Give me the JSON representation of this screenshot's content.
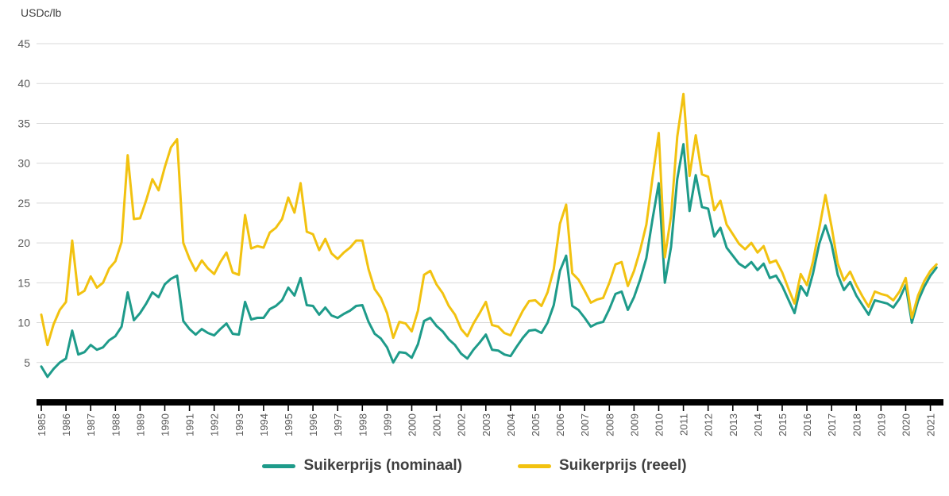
{
  "header": {
    "unit_label": "USDc/lb"
  },
  "legend": {
    "items": [
      {
        "label": "Suikerprijs (nominaal)",
        "color": "#1e9b8a"
      },
      {
        "label": "Suikerprijs (reeel)",
        "color": "#f2c210"
      }
    ]
  },
  "colors": {
    "grid": "#d9d9d9",
    "axis_baseline": "#000000",
    "tick_label": "#595959",
    "unit_label": "#404040",
    "series_nominal": "#1e9b8a",
    "series_real": "#f2c210"
  },
  "chart_data": {
    "type": "line",
    "title": "",
    "xlabel": "",
    "ylabel": "USDc/lb",
    "grid": "horizontal",
    "legend_position": "bottom-center",
    "ylim": [
      0,
      45
    ],
    "yticks": [
      5,
      10,
      15,
      20,
      25,
      30,
      35,
      40,
      45
    ],
    "xlim": [
      1985,
      2021.4
    ],
    "xticks": [
      "1985",
      "1986",
      "1987",
      "1988",
      "1989",
      "1990",
      "1991",
      "1992",
      "1993",
      "1994",
      "1995",
      "1996",
      "1997",
      "1998",
      "1999",
      "2000",
      "2001",
      "2002",
      "2003",
      "2004",
      "2005",
      "2006",
      "2007",
      "2008",
      "2009",
      "2010",
      "2011",
      "2012",
      "2013",
      "2014",
      "2015",
      "2016",
      "2017",
      "2018",
      "2019",
      "2020",
      "2021"
    ],
    "x_start": 1985,
    "x_step": 0.25,
    "series": [
      {
        "name": "Suikerprijs (nominaal)",
        "color": "#1e9b8a",
        "values": [
          4.5,
          3.2,
          4.2,
          5.0,
          5.5,
          9.0,
          6.0,
          6.3,
          7.2,
          6.6,
          6.9,
          7.8,
          8.3,
          9.5,
          13.8,
          10.3,
          11.2,
          12.4,
          13.8,
          13.2,
          14.8,
          15.5,
          15.9,
          10.2,
          9.2,
          8.5,
          9.2,
          8.7,
          8.4,
          9.2,
          9.9,
          8.6,
          8.5,
          12.6,
          10.4,
          10.6,
          10.6,
          11.7,
          12.1,
          12.8,
          14.4,
          13.4,
          15.6,
          12.2,
          12.1,
          11.0,
          11.9,
          10.9,
          10.6,
          11.1,
          11.5,
          12.1,
          12.2,
          10.1,
          8.6,
          8.0,
          6.9,
          5.0,
          6.3,
          6.2,
          5.6,
          7.3,
          10.2,
          10.6,
          9.6,
          8.9,
          7.9,
          7.2,
          6.1,
          5.5,
          6.6,
          7.5,
          8.5,
          6.6,
          6.5,
          6.0,
          5.8,
          7.0,
          8.1,
          9.0,
          9.1,
          8.7,
          10.0,
          12.2,
          16.5,
          18.4,
          12.1,
          11.6,
          10.6,
          9.5,
          9.9,
          10.1,
          11.7,
          13.6,
          13.9,
          11.6,
          13.2,
          15.4,
          18.1,
          23.0,
          27.5,
          15.0,
          19.5,
          28.0,
          32.4,
          24.0,
          28.5,
          24.5,
          24.3,
          20.8,
          21.9,
          19.4,
          18.4,
          17.4,
          16.9,
          17.6,
          16.6,
          17.4,
          15.6,
          15.9,
          14.6,
          12.9,
          11.2,
          14.6,
          13.4,
          16.2,
          19.9,
          22.2,
          19.8,
          16.0,
          14.1,
          15.1,
          13.4,
          12.2,
          11.0,
          12.8,
          12.6,
          12.4,
          11.9,
          13.0,
          14.7,
          10.0,
          12.7,
          14.5,
          15.9,
          16.9
        ]
      },
      {
        "name": "Suikerprijs (reeel)",
        "color": "#f2c210",
        "values": [
          11.0,
          7.2,
          9.8,
          11.6,
          12.6,
          20.3,
          13.5,
          14.0,
          15.8,
          14.4,
          15.0,
          16.8,
          17.7,
          20.1,
          31.0,
          23.0,
          23.1,
          25.4,
          28.0,
          26.6,
          29.5,
          32.0,
          33.0,
          20.0,
          18.0,
          16.5,
          17.8,
          16.8,
          16.1,
          17.6,
          18.8,
          16.3,
          16.0,
          23.5,
          19.3,
          19.6,
          19.4,
          21.3,
          21.9,
          23.0,
          25.7,
          23.8,
          27.5,
          21.4,
          21.1,
          19.1,
          20.5,
          18.7,
          18.0,
          18.8,
          19.4,
          20.3,
          20.3,
          16.7,
          14.2,
          13.1,
          11.2,
          8.1,
          10.1,
          9.9,
          8.9,
          11.5,
          16.0,
          16.5,
          14.8,
          13.7,
          12.1,
          11.0,
          9.2,
          8.3,
          9.9,
          11.2,
          12.6,
          9.7,
          9.5,
          8.7,
          8.4,
          10.0,
          11.5,
          12.7,
          12.8,
          12.1,
          13.8,
          16.7,
          22.4,
          24.8,
          16.2,
          15.4,
          14.0,
          12.5,
          12.9,
          13.1,
          15.0,
          17.3,
          17.6,
          14.6,
          16.5,
          19.1,
          22.3,
          28.2,
          33.8,
          18.2,
          23.4,
          33.3,
          38.7,
          28.4,
          33.5,
          28.6,
          28.3,
          24.1,
          25.3,
          22.3,
          21.1,
          19.9,
          19.2,
          20.0,
          18.8,
          19.6,
          17.5,
          17.8,
          16.3,
          14.3,
          12.4,
          16.1,
          14.7,
          17.7,
          21.8,
          26.0,
          22.0,
          17.4,
          15.3,
          16.4,
          14.7,
          13.3,
          12.0,
          13.9,
          13.6,
          13.4,
          12.8,
          13.9,
          15.6,
          10.6,
          13.4,
          15.2,
          16.5,
          17.3
        ]
      }
    ]
  }
}
